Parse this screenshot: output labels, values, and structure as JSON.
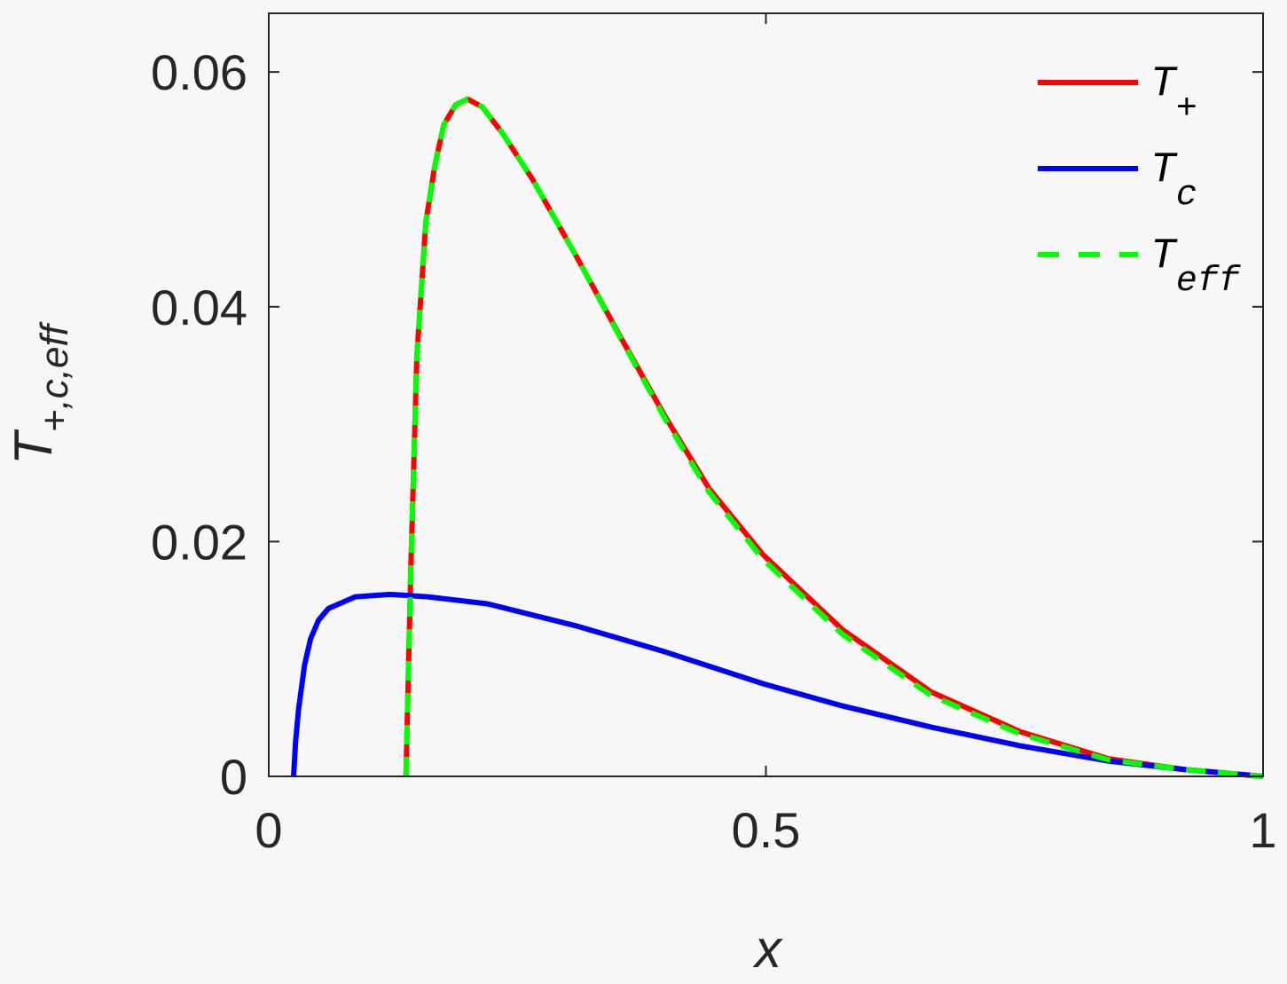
{
  "chart_data": {
    "type": "line",
    "xlabel": "x",
    "ylabel": {
      "base": "T",
      "sub": "+,c,eff"
    },
    "xlim": [
      0,
      1
    ],
    "ylim": [
      0,
      0.065
    ],
    "xticks": [
      0,
      0.5,
      1
    ],
    "xtick_labels": [
      "0",
      "0.5",
      "1"
    ],
    "yticks": [
      0,
      0.02,
      0.04,
      0.06
    ],
    "ytick_labels": [
      "0",
      "0.02",
      "0.04",
      "0.06"
    ],
    "grid": false,
    "legend_position": "top-right",
    "series": [
      {
        "name": "T_+",
        "legend_base": "T",
        "legend_sub": "+",
        "color": "#ff0000",
        "style": "solid",
        "x": [
          0.138,
          0.143,
          0.149,
          0.158,
          0.167,
          0.176,
          0.188,
          0.2,
          0.215,
          0.235,
          0.265,
          0.31,
          0.354,
          0.399,
          0.443,
          0.497,
          0.577,
          0.666,
          0.756,
          0.845,
          0.92,
          1.0
        ],
        "y": [
          0,
          0.018,
          0.0358,
          0.0472,
          0.052,
          0.0555,
          0.0572,
          0.0577,
          0.057,
          0.0548,
          0.0509,
          0.0442,
          0.0374,
          0.0306,
          0.0245,
          0.0189,
          0.0125,
          0.0072,
          0.0038,
          0.0015,
          0.0006,
          0
        ]
      },
      {
        "name": "T_c",
        "legend_base": "T",
        "legend_sub": "c",
        "color": "#0000ff",
        "style": "solid",
        "x": [
          0.025,
          0.027,
          0.03,
          0.036,
          0.042,
          0.05,
          0.06,
          0.087,
          0.122,
          0.16,
          0.22,
          0.31,
          0.399,
          0.497,
          0.577,
          0.666,
          0.756,
          0.845,
          0.92,
          1.0
        ],
        "y": [
          0,
          0.003,
          0.0057,
          0.0095,
          0.0117,
          0.0133,
          0.0143,
          0.0153,
          0.0155,
          0.0153,
          0.0147,
          0.0128,
          0.0106,
          0.0079,
          0.006,
          0.0042,
          0.0026,
          0.0013,
          0.0006,
          0
        ]
      },
      {
        "name": "T_eff",
        "legend_base": "T",
        "legend_sub": "eff",
        "color": "#00ff00",
        "style": "dashed",
        "x": [
          0.138,
          0.143,
          0.149,
          0.158,
          0.167,
          0.176,
          0.188,
          0.2,
          0.215,
          0.235,
          0.265,
          0.31,
          0.354,
          0.399,
          0.443,
          0.497,
          0.577,
          0.666,
          0.756,
          0.845,
          0.92,
          1.0
        ],
        "y": [
          0,
          0.018,
          0.0358,
          0.0472,
          0.052,
          0.0555,
          0.0572,
          0.0577,
          0.057,
          0.0548,
          0.0509,
          0.0442,
          0.0373,
          0.0304,
          0.0242,
          0.0185,
          0.0121,
          0.0069,
          0.0036,
          0.0014,
          0.0006,
          0
        ]
      }
    ]
  }
}
